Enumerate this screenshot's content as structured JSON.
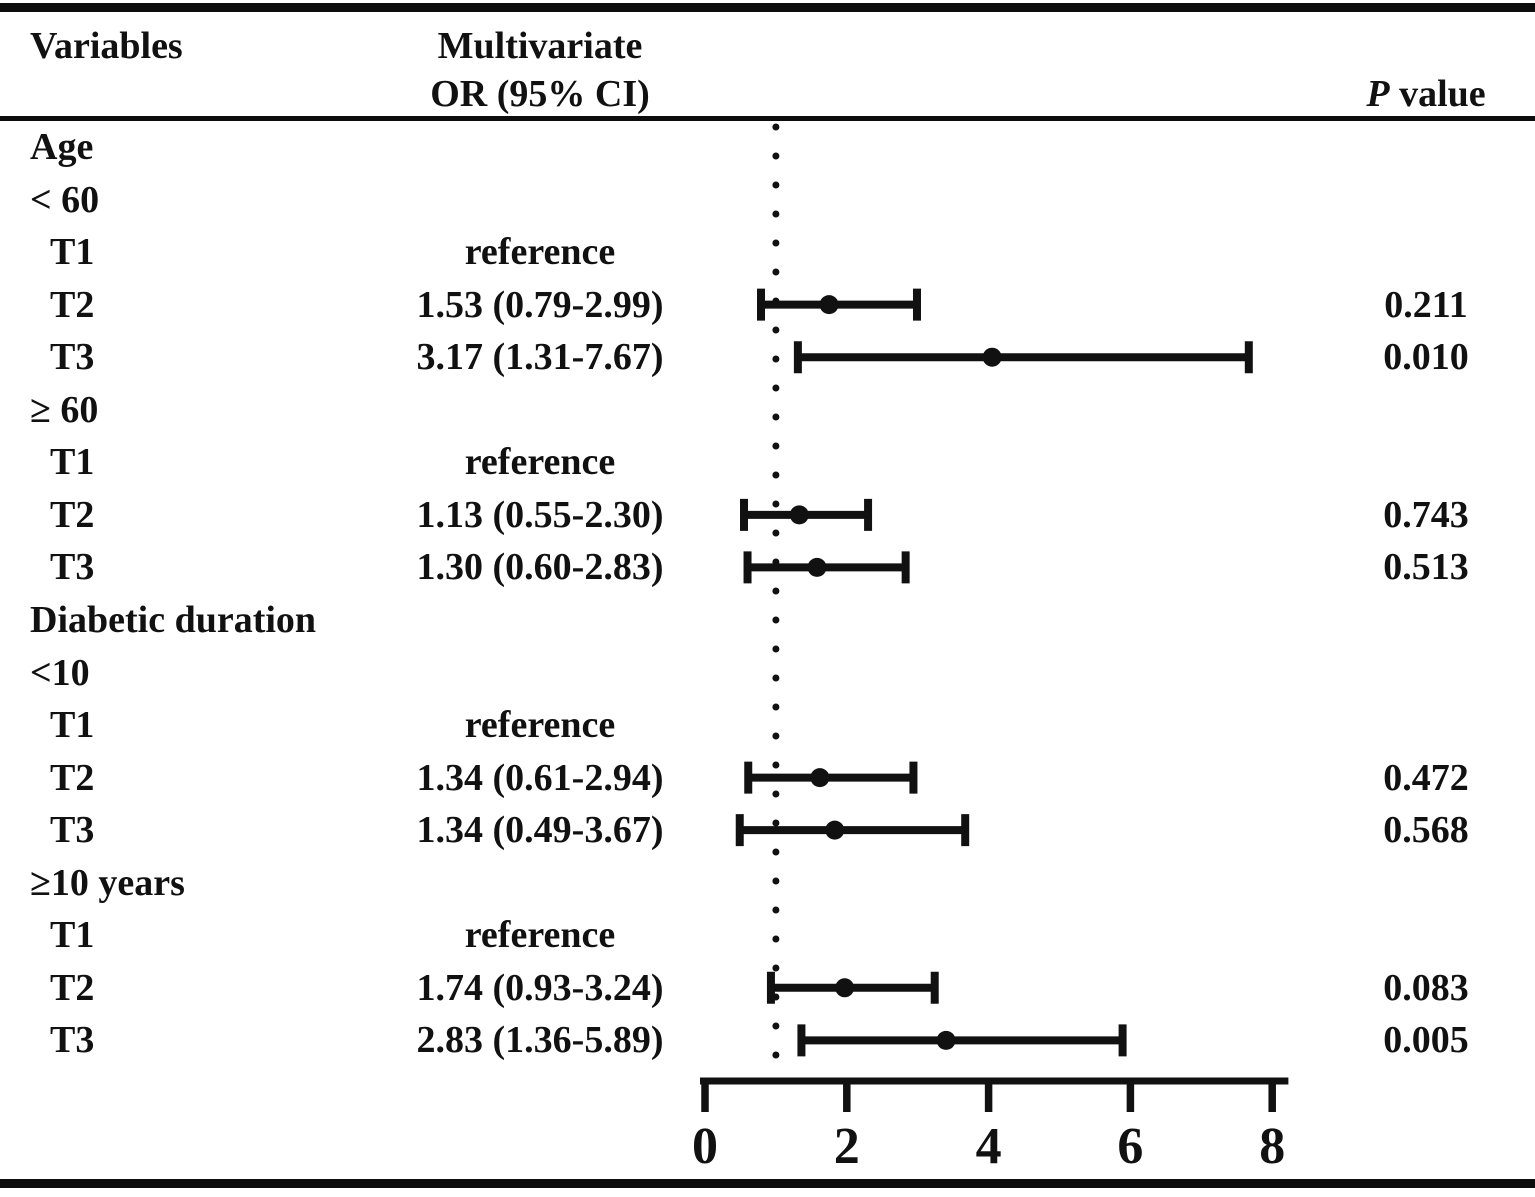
{
  "header": {
    "variables": "Variables",
    "or_line1": "Multivariate",
    "or_line2": "OR (95% CI)",
    "p_italic": "P",
    "p_rest": " value"
  },
  "chart_data": {
    "type": "forest",
    "x_axis": {
      "ticks": [
        0,
        2,
        4,
        6,
        8
      ],
      "range": [
        0,
        8.2
      ],
      "reference_line": 1.0,
      "grid": false
    },
    "rows": [
      {
        "kind": "group",
        "label": "Age"
      },
      {
        "kind": "group",
        "label": "< 60"
      },
      {
        "kind": "item",
        "label": "T1",
        "or_text": "reference"
      },
      {
        "kind": "item",
        "label": "T2",
        "or_text": "1.53 (0.79-2.99)",
        "or": 1.53,
        "ci_low": 0.79,
        "ci_high": 2.99,
        "marker_x": 1.75,
        "p_value": "0.211"
      },
      {
        "kind": "item",
        "label": "T3",
        "or_text": "3.17 (1.31-7.67)",
        "or": 3.17,
        "ci_low": 1.31,
        "ci_high": 7.67,
        "marker_x": 4.05,
        "p_value": "0.010"
      },
      {
        "kind": "group",
        "label": "≥ 60"
      },
      {
        "kind": "item",
        "label": "T1",
        "or_text": "reference"
      },
      {
        "kind": "item",
        "label": "T2",
        "or_text": "1.13 (0.55-2.30)",
        "or": 1.13,
        "ci_low": 0.55,
        "ci_high": 2.3,
        "marker_x": 1.33,
        "p_value": "0.743"
      },
      {
        "kind": "item",
        "label": "T3",
        "or_text": "1.30 (0.60-2.83)",
        "or": 1.3,
        "ci_low": 0.6,
        "ci_high": 2.83,
        "marker_x": 1.58,
        "p_value": "0.513"
      },
      {
        "kind": "group",
        "label": "Diabetic duration"
      },
      {
        "kind": "group",
        "label": "<10"
      },
      {
        "kind": "item",
        "label": "T1",
        "or_text": "reference"
      },
      {
        "kind": "item",
        "label": "T2",
        "or_text": "1.34 (0.61-2.94)",
        "or": 1.34,
        "ci_low": 0.61,
        "ci_high": 2.94,
        "marker_x": 1.62,
        "p_value": "0.472"
      },
      {
        "kind": "item",
        "label": "T3",
        "or_text": "1.34 (0.49-3.67)",
        "or": 1.34,
        "ci_low": 0.49,
        "ci_high": 3.67,
        "marker_x": 1.83,
        "p_value": "0.568"
      },
      {
        "kind": "group",
        "label": "≥10 years"
      },
      {
        "kind": "item",
        "label": "T1",
        "or_text": "reference"
      },
      {
        "kind": "item",
        "label": "T2",
        "or_text": "1.74 (0.93-3.24)",
        "or": 1.74,
        "ci_low": 0.93,
        "ci_high": 3.24,
        "marker_x": 1.97,
        "p_value": "0.083"
      },
      {
        "kind": "item",
        "label": "T3",
        "or_text": "2.83 (1.36-5.89)",
        "or": 2.83,
        "ci_low": 1.36,
        "ci_high": 5.89,
        "marker_x": 3.4,
        "p_value": "0.005"
      }
    ]
  },
  "colors": {
    "ink": "#111111",
    "background": "#ffffff"
  }
}
